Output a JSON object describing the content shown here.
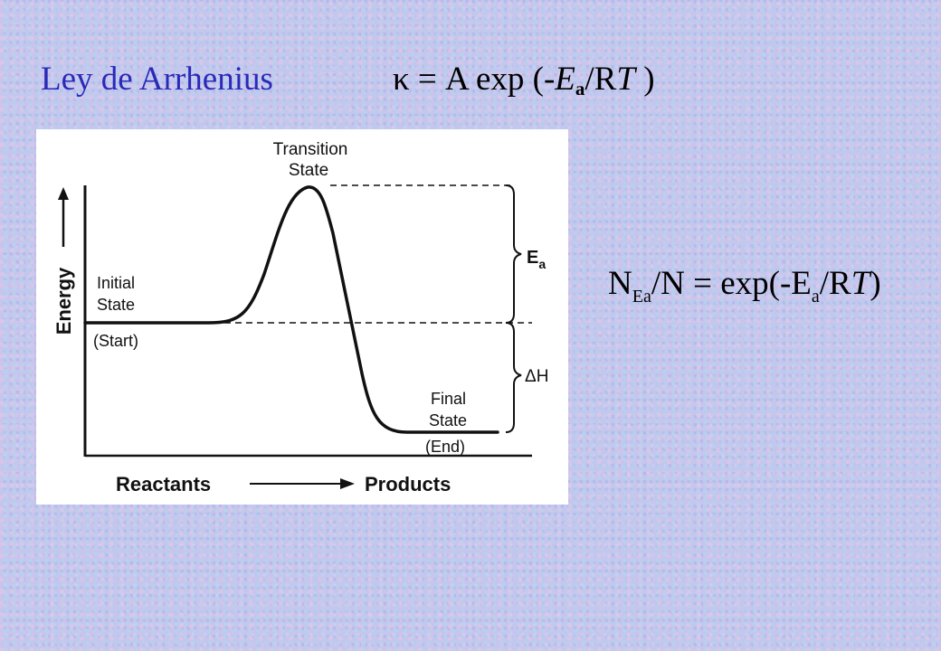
{
  "header": {
    "title": "Ley de Arrhenius",
    "kappa_eq": {
      "kappa": "κ",
      "lead": " = A exp (-",
      "E": "E",
      "sub_a": "a",
      "R": "/R",
      "T": "T",
      "close": " )"
    }
  },
  "equation2": {
    "N": "N",
    "sub_Ea": "Ea",
    "mid": "/N = exp(-E",
    "sub_a": "a",
    "slash_R": "/R",
    "T": "T",
    "close": ")"
  },
  "diagram": {
    "transition_line1": "Transition",
    "transition_line2": "State",
    "energy_axis": "Energy",
    "initial_line1": "Initial",
    "initial_line2": "State",
    "initial_line3": "(Start)",
    "final_line1": "Final",
    "final_line2": "State",
    "final_line3": "(End)",
    "ea_label": "E",
    "ea_sub": "a",
    "dh_label": "ΔH",
    "reactants": "Reactants",
    "products": "Products"
  },
  "colors": {
    "title": "#2a2ab8",
    "background": "#c4c6ee",
    "panel": "#ffffff",
    "ink": "#111111"
  }
}
